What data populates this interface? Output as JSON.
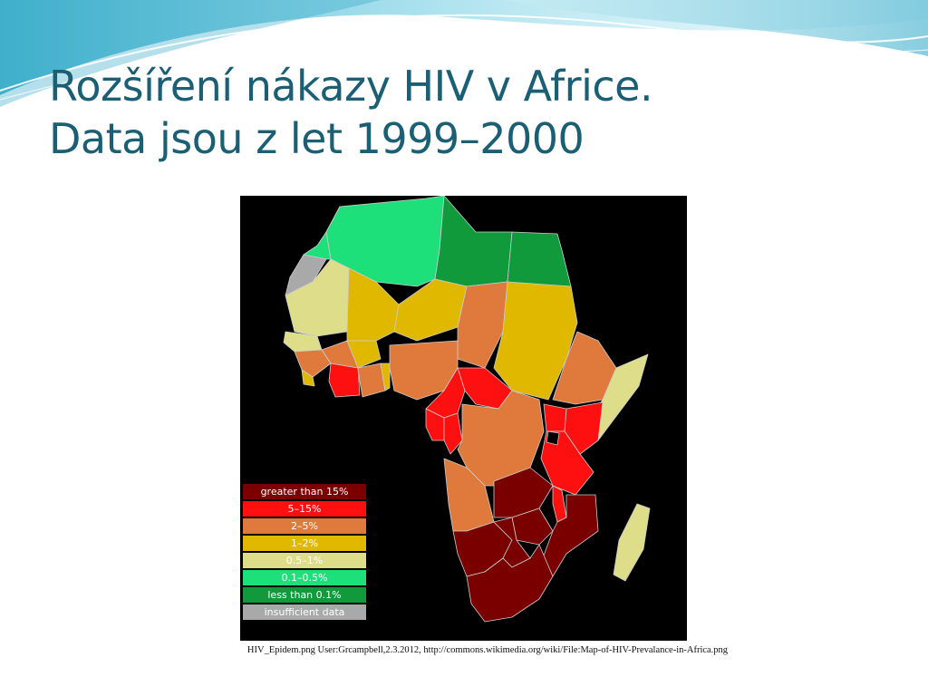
{
  "slide": {
    "title_line1": "Rozšíření nákazy HIV v Africe.",
    "title_line2": "Data jsou z let 1999–2000",
    "caption": "HIV_Epidem.png User:Grcampbell,2.3.2012, http://commons.wikimedia.org/wiki/File:Map-of-HIV-Prevalance-in-Africa.png"
  },
  "colors": {
    "title": "#1b5f75",
    "map_background": "#000000",
    "wave_light": "#cdeef6",
    "wave_mid": "#7fd3e6",
    "wave_dark": "#2aa7c7"
  },
  "legend": [
    {
      "label": "greater than 15%",
      "color": "#7a0000",
      "text_color": "#ffffff"
    },
    {
      "label": "5–15%",
      "color": "#ff1010",
      "text_color": "#ffffff"
    },
    {
      "label": "2–5%",
      "color": "#e07a3c",
      "text_color": "#ffffff"
    },
    {
      "label": "1–2%",
      "color": "#e0b800",
      "text_color": "#ffffff"
    },
    {
      "label": "0.5–1%",
      "color": "#dede8a",
      "text_color": "#ffffff"
    },
    {
      "label": "0.1–0.5%",
      "color": "#1ee07a",
      "text_color": "#ffffff"
    },
    {
      "label": "less than 0.1%",
      "color": "#109a3c",
      "text_color": "#ffffff"
    },
    {
      "label": "insufficient data",
      "color": "#a9a9a9",
      "text_color": "#ffffff"
    }
  ]
}
